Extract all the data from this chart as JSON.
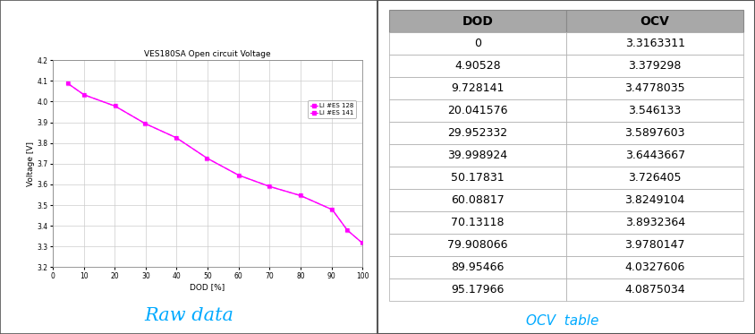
{
  "dod_values": [
    0,
    4.90528,
    9.728141,
    20.041576,
    29.952332,
    39.998924,
    50.17831,
    60.08817,
    70.13118,
    79.908066,
    89.95466,
    95.17966
  ],
  "ocv_values": [
    3.3163311,
    3.379298,
    3.4778035,
    3.546133,
    3.5897603,
    3.6443667,
    3.726405,
    3.8249104,
    3.8932364,
    3.9780147,
    4.0327606,
    4.0875034
  ],
  "chart_title": "VES180SA Open circuit Voltage",
  "xlabel": "DOD [%]",
  "ylabel": "Voltage [V]",
  "legend_labels": [
    "Li #ES 128",
    "Li #ES 141"
  ],
  "line_color": "#FF00FF",
  "xlim": [
    0,
    100
  ],
  "ylim": [
    3.2,
    4.2
  ],
  "yticks": [
    3.2,
    3.3,
    3.4,
    3.5,
    3.6,
    3.7,
    3.8,
    3.9,
    4.0,
    4.1,
    4.2
  ],
  "xticks": [
    0,
    10,
    20,
    30,
    40,
    50,
    60,
    70,
    80,
    90,
    100
  ],
  "raw_data_label": "Raw data",
  "raw_data_color": "#00AAFF",
  "table_header_bg": "#A8A8A8",
  "table_header_color": "black",
  "table_row_bg": "white",
  "table_font_size": 9,
  "table_title": "OCV  table",
  "table_title_color": "#00AAFF",
  "background_color": "white",
  "border_color": "#555555"
}
